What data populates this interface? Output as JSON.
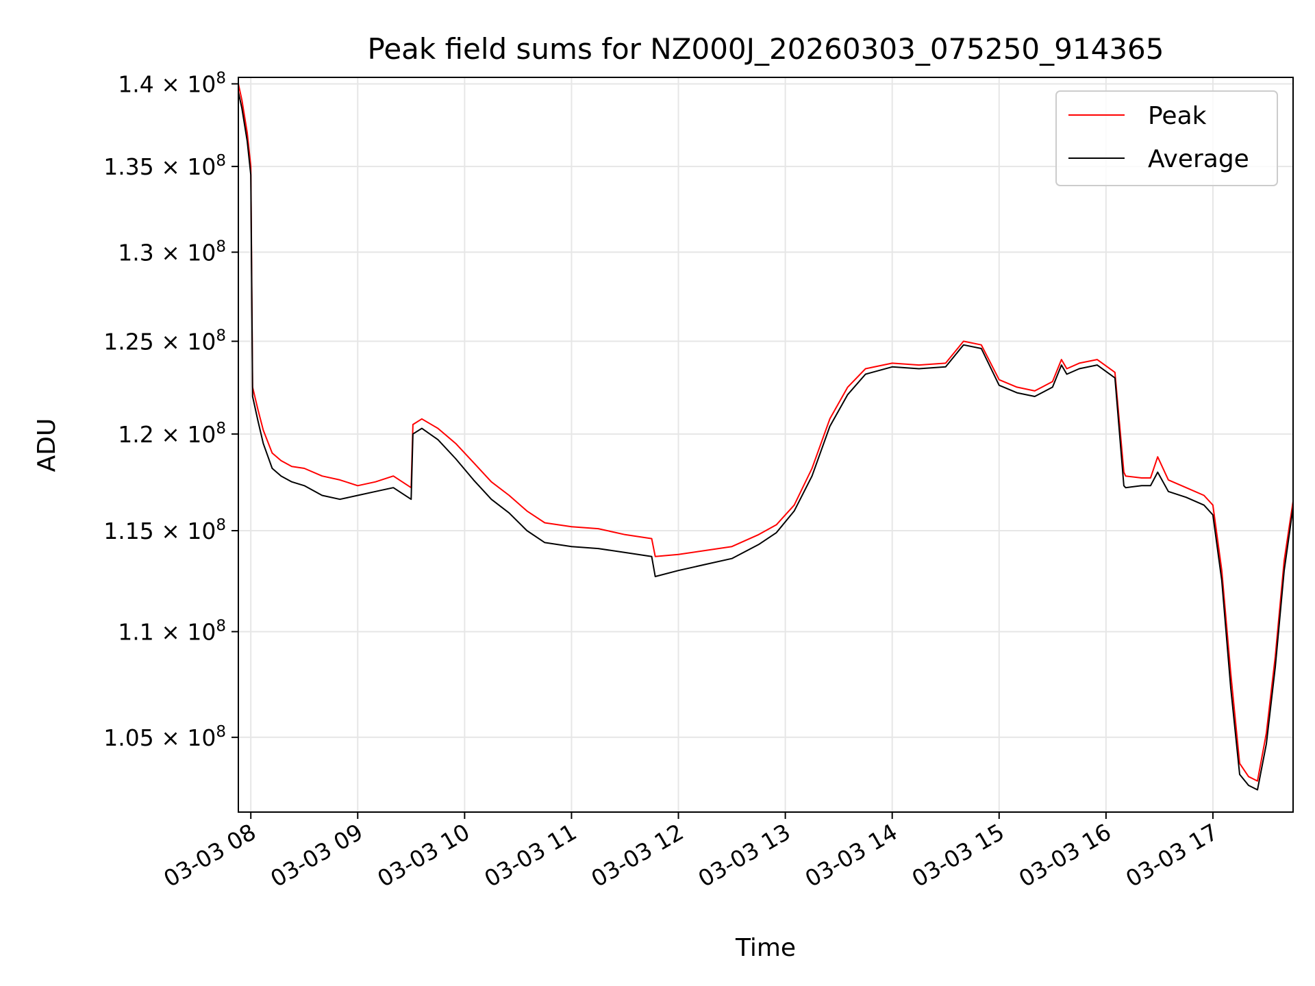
{
  "chart_data": {
    "type": "line",
    "title": "Peak field sums for NZ000J_20260303_075250_914365",
    "xlabel": "Time",
    "ylabel": "ADU",
    "yscale": "log",
    "xlim": [
      "2026-03-03 07:53",
      "2026-03-03 17:45"
    ],
    "ylim": [
      101600000,
      140400000
    ],
    "grid": true,
    "legend_position": "top-right",
    "x_ticks": [
      {
        "value": "2026-03-03 08:00",
        "label": "03-03 08"
      },
      {
        "value": "2026-03-03 09:00",
        "label": "03-03 09"
      },
      {
        "value": "2026-03-03 10:00",
        "label": "03-03 10"
      },
      {
        "value": "2026-03-03 11:00",
        "label": "03-03 11"
      },
      {
        "value": "2026-03-03 12:00",
        "label": "03-03 12"
      },
      {
        "value": "2026-03-03 13:00",
        "label": "03-03 13"
      },
      {
        "value": "2026-03-03 14:00",
        "label": "03-03 14"
      },
      {
        "value": "2026-03-03 15:00",
        "label": "03-03 15"
      },
      {
        "value": "2026-03-03 16:00",
        "label": "03-03 16"
      },
      {
        "value": "2026-03-03 17:00",
        "label": "03-03 17"
      }
    ],
    "y_ticks": [
      {
        "value": 105000000,
        "mantissa": "1.05"
      },
      {
        "value": 110000000,
        "mantissa": "1.1"
      },
      {
        "value": 115000000,
        "mantissa": "1.15"
      },
      {
        "value": 120000000,
        "mantissa": "1.2"
      },
      {
        "value": 125000000,
        "mantissa": "1.25"
      },
      {
        "value": 130000000,
        "mantissa": "1.3"
      },
      {
        "value": 135000000,
        "mantissa": "1.35"
      },
      {
        "value": 140000000,
        "mantissa": "1.4"
      }
    ],
    "y_tick_suffix": "× 10",
    "y_tick_exponent": "8",
    "series": [
      {
        "name": "Peak",
        "color": "#ff0000",
        "x": [
          "2026-03-03 07:53",
          "2026-03-03 07:55",
          "2026-03-03 07:58",
          "2026-03-03 08:00",
          "2026-03-03 08:01",
          "2026-03-03 08:04",
          "2026-03-03 08:07",
          "2026-03-03 08:12",
          "2026-03-03 08:17",
          "2026-03-03 08:23",
          "2026-03-03 08:30",
          "2026-03-03 08:40",
          "2026-03-03 08:50",
          "2026-03-03 09:00",
          "2026-03-03 09:10",
          "2026-03-03 09:20",
          "2026-03-03 09:30",
          "2026-03-03 09:31",
          "2026-03-03 09:36",
          "2026-03-03 09:45",
          "2026-03-03 09:55",
          "2026-03-03 10:05",
          "2026-03-03 10:15",
          "2026-03-03 10:25",
          "2026-03-03 10:35",
          "2026-03-03 10:45",
          "2026-03-03 11:00",
          "2026-03-03 11:15",
          "2026-03-03 11:30",
          "2026-03-03 11:45",
          "2026-03-03 11:47",
          "2026-03-03 12:00",
          "2026-03-03 12:15",
          "2026-03-03 12:30",
          "2026-03-03 12:45",
          "2026-03-03 12:55",
          "2026-03-03 13:05",
          "2026-03-03 13:15",
          "2026-03-03 13:25",
          "2026-03-03 13:35",
          "2026-03-03 13:45",
          "2026-03-03 14:00",
          "2026-03-03 14:15",
          "2026-03-03 14:30",
          "2026-03-03 14:40",
          "2026-03-03 14:50",
          "2026-03-03 15:00",
          "2026-03-03 15:10",
          "2026-03-03 15:20",
          "2026-03-03 15:30",
          "2026-03-03 15:35",
          "2026-03-03 15:38",
          "2026-03-03 15:45",
          "2026-03-03 15:55",
          "2026-03-03 16:05",
          "2026-03-03 16:10",
          "2026-03-03 16:11",
          "2026-03-03 16:20",
          "2026-03-03 16:25",
          "2026-03-03 16:29",
          "2026-03-03 16:35",
          "2026-03-03 16:45",
          "2026-03-03 16:55",
          "2026-03-03 17:00",
          "2026-03-03 17:05",
          "2026-03-03 17:10",
          "2026-03-03 17:15",
          "2026-03-03 17:20",
          "2026-03-03 17:25",
          "2026-03-03 17:30",
          "2026-03-03 17:35",
          "2026-03-03 17:40",
          "2026-03-03 17:45"
        ],
        "values": [
          140000000,
          139000000,
          137000000,
          135000000,
          122500000,
          121300000,
          120200000,
          119000000,
          118600000,
          118300000,
          118200000,
          117800000,
          117600000,
          117300000,
          117500000,
          117800000,
          117200000,
          120500000,
          120800000,
          120300000,
          119500000,
          118500000,
          117500000,
          116800000,
          116000000,
          115400000,
          115200000,
          115100000,
          114800000,
          114600000,
          113700000,
          113800000,
          114000000,
          114200000,
          114800000,
          115300000,
          116300000,
          118200000,
          120800000,
          122500000,
          123500000,
          123800000,
          123700000,
          123800000,
          125000000,
          124800000,
          122900000,
          122500000,
          122300000,
          122800000,
          124000000,
          123500000,
          123800000,
          124000000,
          123300000,
          118000000,
          117800000,
          117700000,
          117700000,
          118800000,
          117600000,
          117200000,
          116800000,
          116300000,
          113000000,
          108000000,
          103800000,
          103200000,
          103000000,
          105200000,
          108800000,
          113500000,
          116500000
        ]
      },
      {
        "name": "Average",
        "color": "#000000",
        "x": [
          "2026-03-03 07:53",
          "2026-03-03 07:55",
          "2026-03-03 07:58",
          "2026-03-03 08:00",
          "2026-03-03 08:01",
          "2026-03-03 08:04",
          "2026-03-03 08:07",
          "2026-03-03 08:12",
          "2026-03-03 08:17",
          "2026-03-03 08:23",
          "2026-03-03 08:30",
          "2026-03-03 08:40",
          "2026-03-03 08:50",
          "2026-03-03 09:00",
          "2026-03-03 09:10",
          "2026-03-03 09:20",
          "2026-03-03 09:30",
          "2026-03-03 09:31",
          "2026-03-03 09:36",
          "2026-03-03 09:45",
          "2026-03-03 09:55",
          "2026-03-03 10:05",
          "2026-03-03 10:15",
          "2026-03-03 10:25",
          "2026-03-03 10:35",
          "2026-03-03 10:45",
          "2026-03-03 11:00",
          "2026-03-03 11:15",
          "2026-03-03 11:30",
          "2026-03-03 11:45",
          "2026-03-03 11:47",
          "2026-03-03 12:00",
          "2026-03-03 12:15",
          "2026-03-03 12:30",
          "2026-03-03 12:45",
          "2026-03-03 12:55",
          "2026-03-03 13:05",
          "2026-03-03 13:15",
          "2026-03-03 13:25",
          "2026-03-03 13:35",
          "2026-03-03 13:45",
          "2026-03-03 14:00",
          "2026-03-03 14:15",
          "2026-03-03 14:30",
          "2026-03-03 14:40",
          "2026-03-03 14:50",
          "2026-03-03 15:00",
          "2026-03-03 15:10",
          "2026-03-03 15:20",
          "2026-03-03 15:30",
          "2026-03-03 15:35",
          "2026-03-03 15:38",
          "2026-03-03 15:45",
          "2026-03-03 15:55",
          "2026-03-03 16:05",
          "2026-03-03 16:10",
          "2026-03-03 16:11",
          "2026-03-03 16:20",
          "2026-03-03 16:25",
          "2026-03-03 16:29",
          "2026-03-03 16:35",
          "2026-03-03 16:45",
          "2026-03-03 16:55",
          "2026-03-03 17:00",
          "2026-03-03 17:05",
          "2026-03-03 17:10",
          "2026-03-03 17:15",
          "2026-03-03 17:20",
          "2026-03-03 17:25",
          "2026-03-03 17:30",
          "2026-03-03 17:35",
          "2026-03-03 17:40",
          "2026-03-03 17:45"
        ],
        "values": [
          139500000,
          138500000,
          136500000,
          134500000,
          122000000,
          120700000,
          119500000,
          118200000,
          117800000,
          117500000,
          117300000,
          116800000,
          116600000,
          116800000,
          117000000,
          117200000,
          116600000,
          120000000,
          120300000,
          119700000,
          118700000,
          117600000,
          116600000,
          115900000,
          115000000,
          114400000,
          114200000,
          114100000,
          113900000,
          113700000,
          112700000,
          113000000,
          113300000,
          113600000,
          114300000,
          114900000,
          116000000,
          117800000,
          120400000,
          122100000,
          123200000,
          123600000,
          123500000,
          123600000,
          124800000,
          124600000,
          122600000,
          122200000,
          122000000,
          122500000,
          123700000,
          123200000,
          123500000,
          123700000,
          123000000,
          117300000,
          117200000,
          117300000,
          117300000,
          118000000,
          117000000,
          116700000,
          116300000,
          115800000,
          112500000,
          107300000,
          103300000,
          102800000,
          102600000,
          104700000,
          108300000,
          113000000,
          116200000
        ]
      }
    ]
  }
}
